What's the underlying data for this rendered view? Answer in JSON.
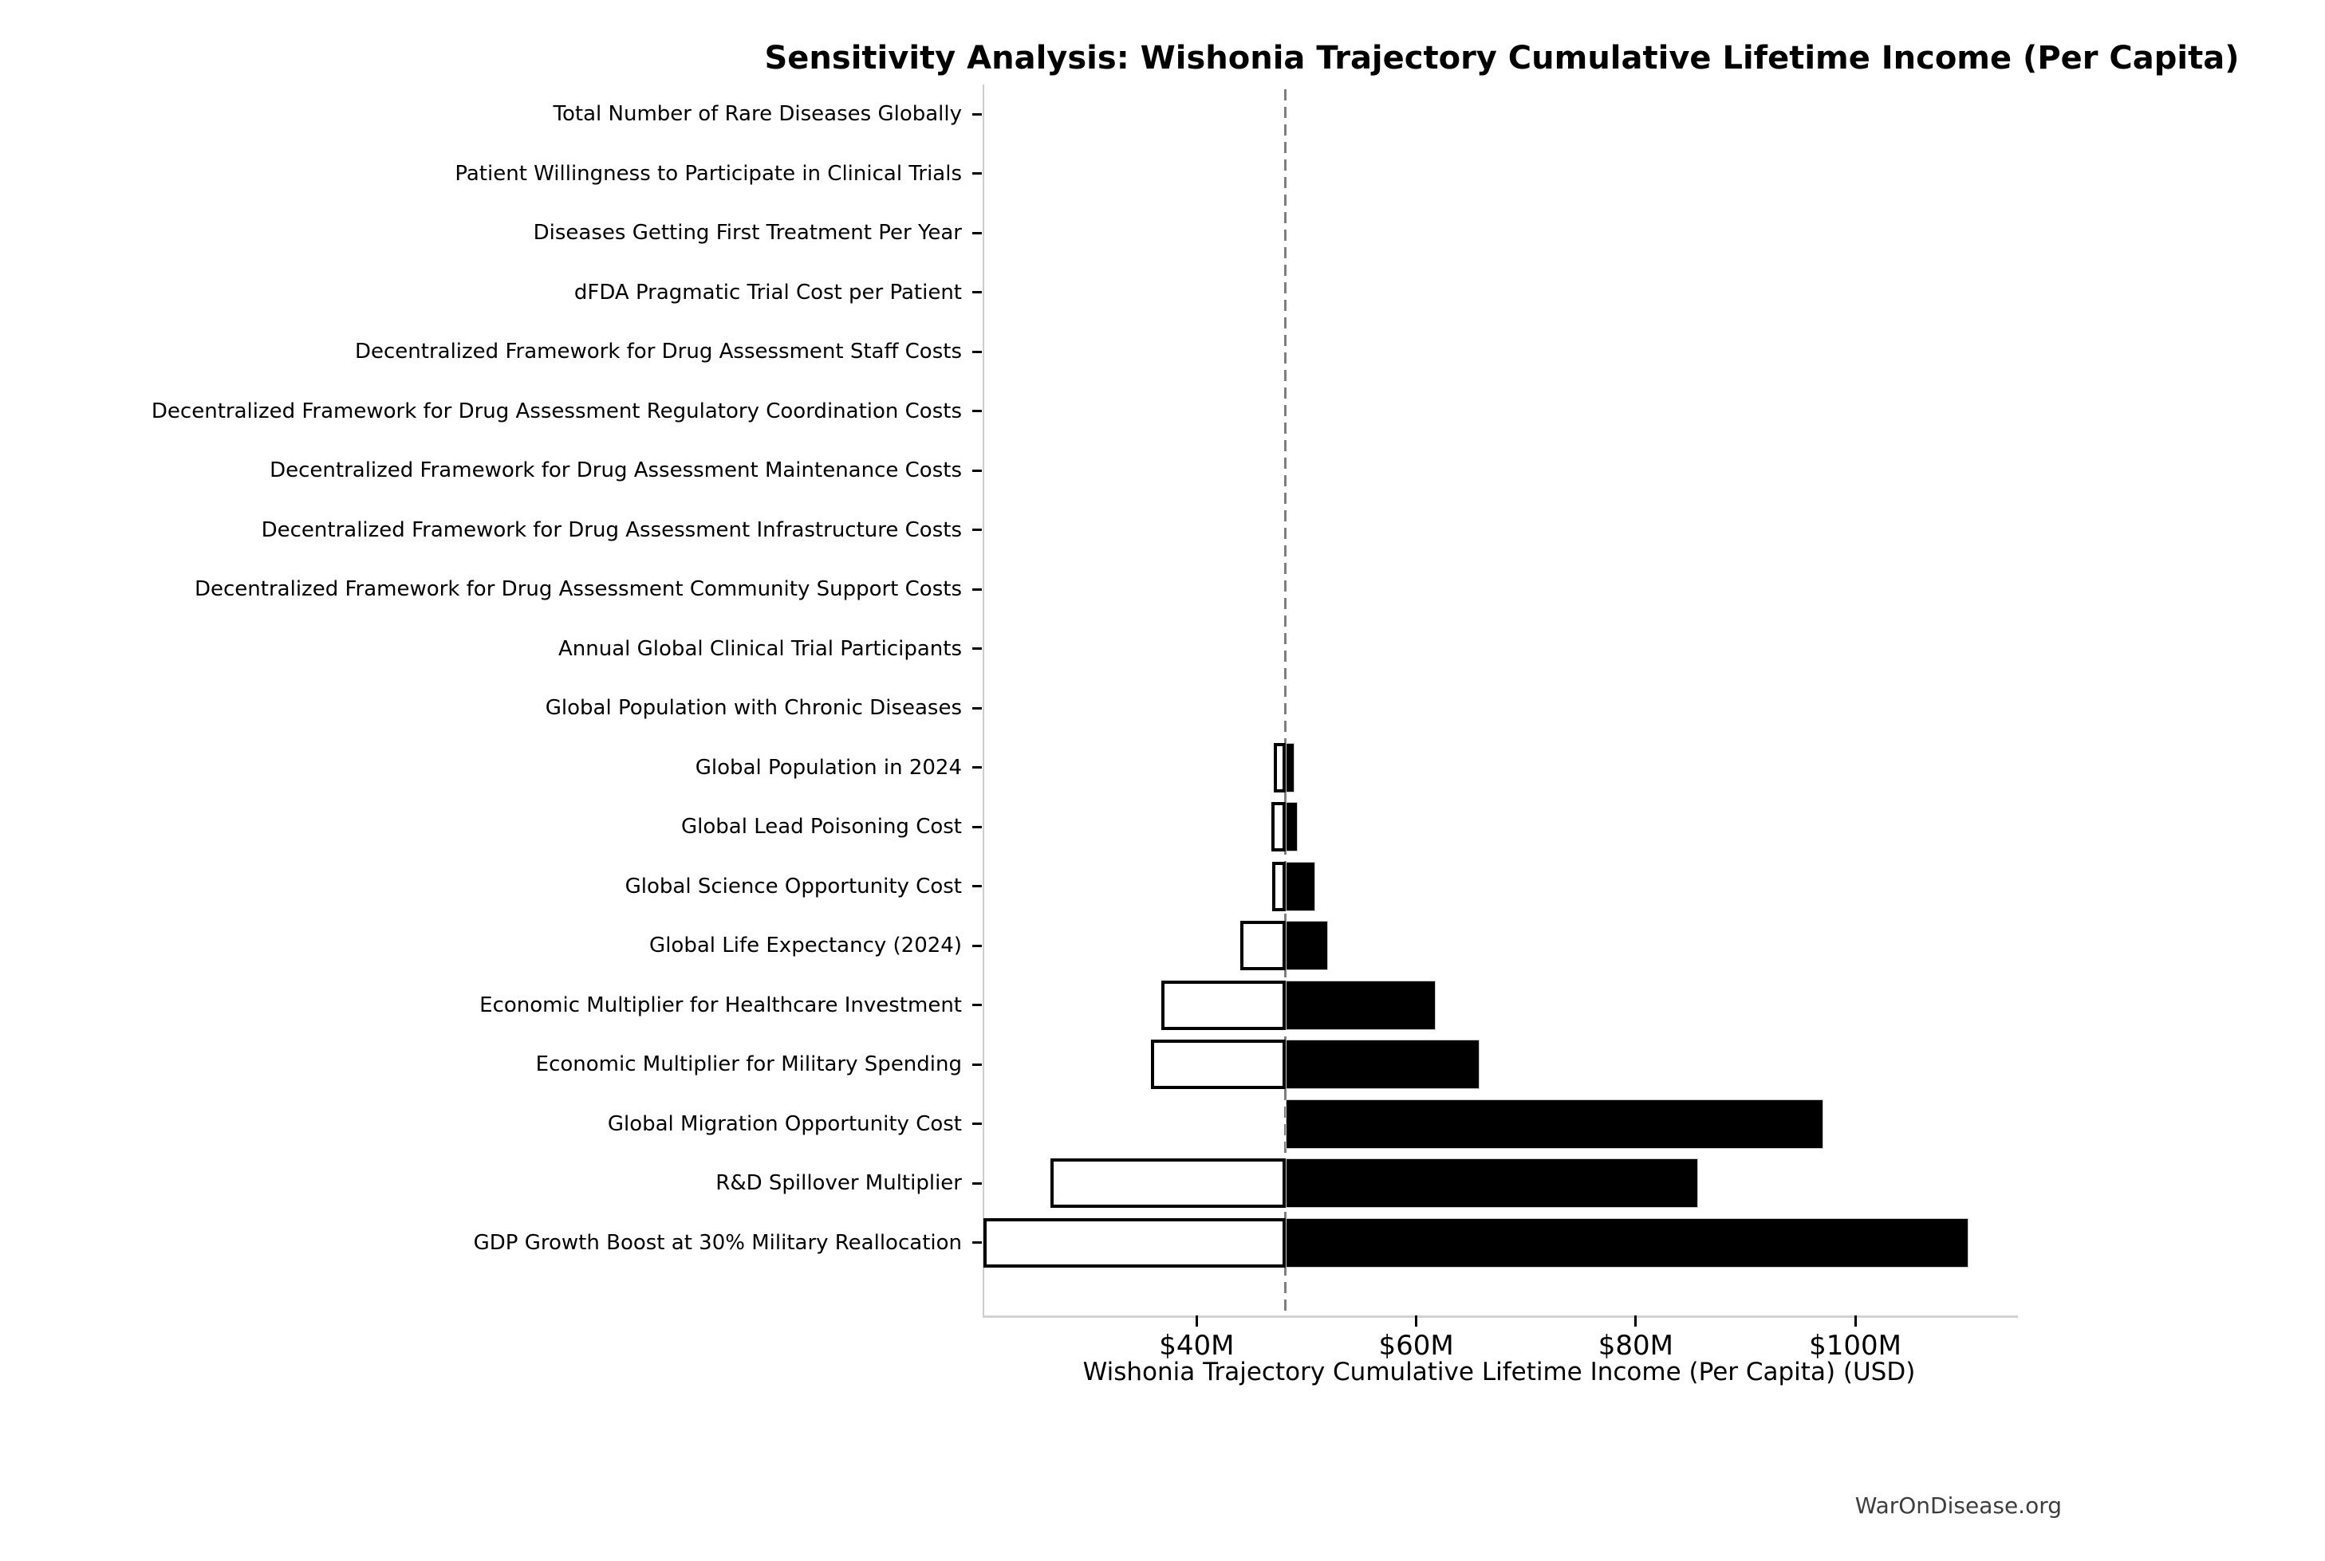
{
  "title": "Sensitivity Analysis: Wishonia Trajectory Cumulative Lifetime Income (Per Capita)",
  "footer": "WarOnDisease.org",
  "chart_data": {
    "type": "bar",
    "subtype": "tornado-sensitivity",
    "title": "Sensitivity Analysis: Wishonia Trajectory Cumulative Lifetime Income (Per Capita)",
    "xlabel": "Wishonia Trajectory Cumulative Lifetime Income (Per Capita) (USD)",
    "ylabel": "",
    "grid": false,
    "legend": "none",
    "baseline_value": 48.1,
    "xlim": [
      20.5,
      114.6
    ],
    "x_ticks": [
      {
        "value": 40,
        "label": "$40M"
      },
      {
        "value": 60,
        "label": "$60M"
      },
      {
        "value": 80,
        "label": "$80M"
      },
      {
        "value": 100,
        "label": "$100M"
      }
    ],
    "categories": [
      "Total Number of Rare Diseases Globally",
      "Patient Willingness to Participate in Clinical Trials",
      "Diseases Getting First Treatment Per Year",
      "dFDA Pragmatic Trial Cost per Patient",
      "Decentralized Framework for Drug Assessment Staff Costs",
      "Decentralized Framework for Drug Assessment Regulatory Coordination Costs",
      "Decentralized Framework for Drug Assessment Maintenance Costs",
      "Decentralized Framework for Drug Assessment Infrastructure Costs",
      "Decentralized Framework for Drug Assessment Community Support Costs",
      "Annual Global Clinical Trial Participants",
      "Global Population with Chronic Diseases",
      "Global Population in 2024",
      "Global Lead Poisoning Cost",
      "Global Science Opportunity Cost",
      "Global Life Expectancy (2024)",
      "Economic Multiplier for Healthcare Investment",
      "Economic Multiplier for Military Spending",
      "Global Migration Opportunity Cost",
      "R&D Spillover Multiplier",
      "GDP Growth Boost at 30% Military Reallocation"
    ],
    "series": [
      {
        "name": "low_estimate_millions_usd",
        "values": [
          48.1,
          48.1,
          48.1,
          48.1,
          48.1,
          48.1,
          48.1,
          48.1,
          48.1,
          48.1,
          48.1,
          47.0,
          46.8,
          46.9,
          44.0,
          36.8,
          35.8,
          48.1,
          26.7,
          20.6
        ]
      },
      {
        "name": "high_estimate_millions_usd",
        "values": [
          48.1,
          48.1,
          48.1,
          48.1,
          48.1,
          48.1,
          48.1,
          48.1,
          48.1,
          48.1,
          48.1,
          48.9,
          49.2,
          50.8,
          52.0,
          61.8,
          65.8,
          97.1,
          85.7,
          110.3
        ]
      }
    ],
    "colors": {
      "low_bar_fill": "#ffffff",
      "low_bar_edge": "#000000",
      "high_bar_fill": "#000000",
      "baseline_line": "#7f7f7f",
      "spine": "#cccccc",
      "text": "#000000",
      "footer_text": "#3d3d3d"
    }
  }
}
